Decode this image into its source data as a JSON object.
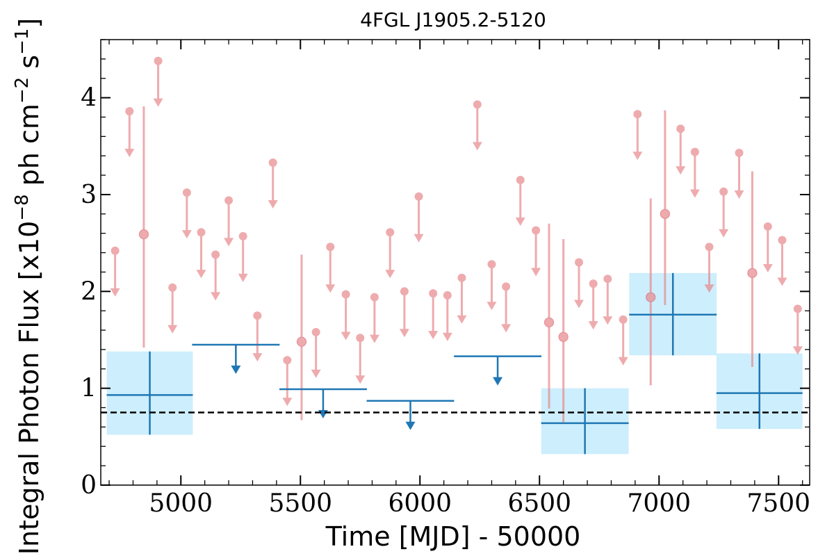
{
  "chart_data": {
    "type": "scatter",
    "title": "4FGL J1905.2-5120",
    "xlabel": "Time [MJD] - 50000",
    "ylabel": "Integral Photon Flux [x10^-8 ph cm^-2 s^-1]",
    "ylabel_parts": {
      "main": "Integral Photon Flux [x10",
      "e1": "−8",
      "mid": " ph cm",
      "e2": "−2",
      "mid2": " s",
      "e3": "−1",
      "end": "]"
    },
    "xlim": [
      4665,
      7630
    ],
    "ylim": [
      0,
      4.6
    ],
    "xticks": [
      5000,
      5500,
      6000,
      6500,
      7000,
      7500
    ],
    "yticks": [
      0,
      1,
      2,
      3,
      4
    ],
    "grid": false,
    "reference_line": {
      "y": 0.75,
      "style": "dashed",
      "color": "#000000"
    },
    "colors": {
      "coarse": "#1f77b4",
      "coarse_band": "#cdeefc",
      "fine": "#e8888c"
    },
    "series": [
      {
        "bin_size_days": 365,
        "color": "#1f77b4",
        "detections": [
          {
            "x": 4870,
            "xerr": 180,
            "y": 0.93,
            "ylow": 0.52,
            "yhigh": 1.38
          },
          {
            "x": 6690,
            "xerr": 183,
            "y": 0.64,
            "ylow": 0.32,
            "yhigh": 1.0
          },
          {
            "x": 7058,
            "xerr": 183,
            "y": 1.76,
            "ylow": 1.34,
            "yhigh": 2.19
          },
          {
            "x": 7420,
            "xerr": 180,
            "y": 0.95,
            "ylow": 0.58,
            "yhigh": 1.36
          }
        ],
        "upper_limits": [
          {
            "x": 5230,
            "xerr": 183,
            "y": 1.45
          },
          {
            "x": 5595,
            "xerr": 183,
            "y": 0.99
          },
          {
            "x": 5960,
            "xerr": 183,
            "y": 0.87
          },
          {
            "x": 6325,
            "xerr": 183,
            "y": 1.33
          }
        ]
      },
      {
        "bin_size_days": 60,
        "color": "#e8888c",
        "detections": [
          {
            "x": 4845,
            "y": 2.59,
            "ylow": 1.42,
            "yhigh": 3.91
          },
          {
            "x": 5505,
            "y": 1.48,
            "ylow": 0.67,
            "yhigh": 2.38
          },
          {
            "x": 6540,
            "y": 1.68,
            "ylow": 0.79,
            "yhigh": 2.7
          },
          {
            "x": 6600,
            "y": 1.53,
            "ylow": 0.65,
            "yhigh": 2.54
          },
          {
            "x": 6965,
            "y": 1.94,
            "ylow": 1.03,
            "yhigh": 2.96
          },
          {
            "x": 7025,
            "y": 2.8,
            "ylow": 1.86,
            "yhigh": 3.87
          },
          {
            "x": 7390,
            "y": 2.19,
            "ylow": 1.22,
            "yhigh": 3.24
          }
        ],
        "upper_limits": [
          {
            "x": 4725,
            "y": 2.42
          },
          {
            "x": 4785,
            "y": 3.86
          },
          {
            "x": 4905,
            "y": 4.38
          },
          {
            "x": 4965,
            "y": 2.04
          },
          {
            "x": 5025,
            "y": 3.02
          },
          {
            "x": 5085,
            "y": 2.61
          },
          {
            "x": 5145,
            "y": 2.38
          },
          {
            "x": 5200,
            "y": 2.94
          },
          {
            "x": 5260,
            "y": 2.57
          },
          {
            "x": 5320,
            "y": 1.75
          },
          {
            "x": 5385,
            "y": 3.33
          },
          {
            "x": 5445,
            "y": 1.29
          },
          {
            "x": 5565,
            "y": 1.58
          },
          {
            "x": 5625,
            "y": 2.46
          },
          {
            "x": 5690,
            "y": 1.97
          },
          {
            "x": 5750,
            "y": 1.52
          },
          {
            "x": 5810,
            "y": 1.94
          },
          {
            "x": 5875,
            "y": 2.61
          },
          {
            "x": 5935,
            "y": 2.0
          },
          {
            "x": 5995,
            "y": 2.98
          },
          {
            "x": 6055,
            "y": 1.98
          },
          {
            "x": 6115,
            "y": 1.96
          },
          {
            "x": 6175,
            "y": 2.14
          },
          {
            "x": 6240,
            "y": 3.93
          },
          {
            "x": 6300,
            "y": 2.28
          },
          {
            "x": 6360,
            "y": 2.05
          },
          {
            "x": 6420,
            "y": 3.15
          },
          {
            "x": 6485,
            "y": 2.63
          },
          {
            "x": 6665,
            "y": 2.3
          },
          {
            "x": 6725,
            "y": 2.08
          },
          {
            "x": 6785,
            "y": 2.13
          },
          {
            "x": 6850,
            "y": 1.71
          },
          {
            "x": 6910,
            "y": 3.83
          },
          {
            "x": 7090,
            "y": 3.68
          },
          {
            "x": 7150,
            "y": 3.44
          },
          {
            "x": 7210,
            "y": 2.46
          },
          {
            "x": 7270,
            "y": 3.03
          },
          {
            "x": 7335,
            "y": 3.43
          },
          {
            "x": 7455,
            "y": 2.67
          },
          {
            "x": 7515,
            "y": 2.53
          },
          {
            "x": 7580,
            "y": 1.82
          }
        ]
      }
    ]
  }
}
